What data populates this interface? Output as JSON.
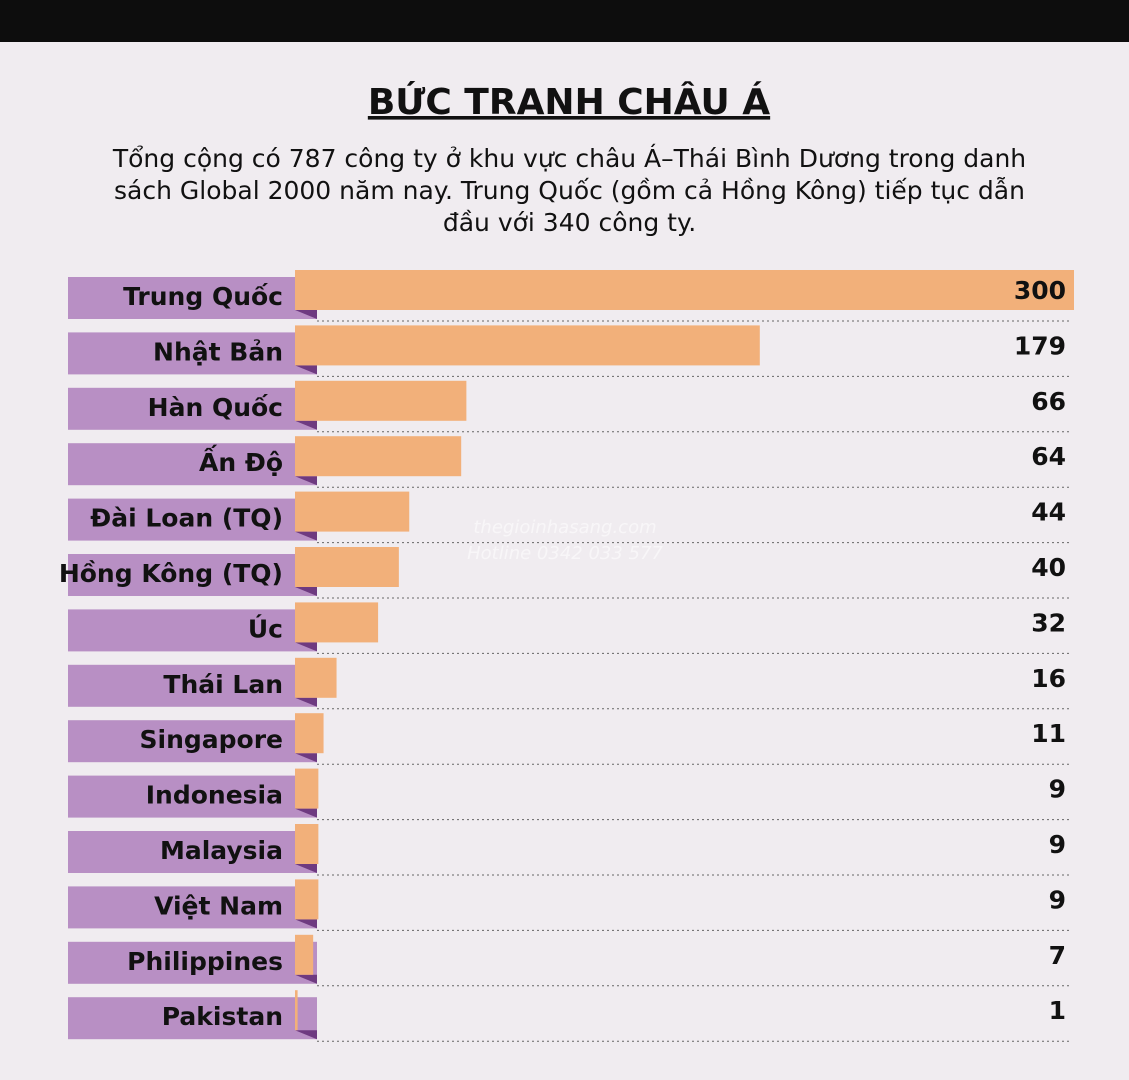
{
  "chart_data": {
    "type": "bar",
    "orientation": "horizontal",
    "title": "BỨC TRANH CHÂU Á",
    "subtitle": "Tổng cộng có 787 công ty ở khu vực châu Á–Thái Bình Dương trong danh sách Global 2000 năm nay. Trung Quốc (gồm cả Hồng Kông) tiếp tục dẫn đầu với 340 công ty.",
    "categories": [
      "Trung Quốc",
      "Nhật Bản",
      "Hàn Quốc",
      "Ấn Độ",
      "Đài Loan (TQ)",
      "Hồng Kông (TQ)",
      "Úc",
      "Thái Lan",
      "Singapore",
      "Indonesia",
      "Malaysia",
      "Việt Nam",
      "Philippines",
      "Pakistan"
    ],
    "values": [
      300,
      179,
      66,
      64,
      44,
      40,
      32,
      16,
      11,
      9,
      9,
      9,
      7,
      1
    ],
    "color": "#f2b07a",
    "label_color": "#b88fc4",
    "watermark": [
      "thegioinhasang.com",
      "Hotline 0342 033 577"
    ]
  }
}
